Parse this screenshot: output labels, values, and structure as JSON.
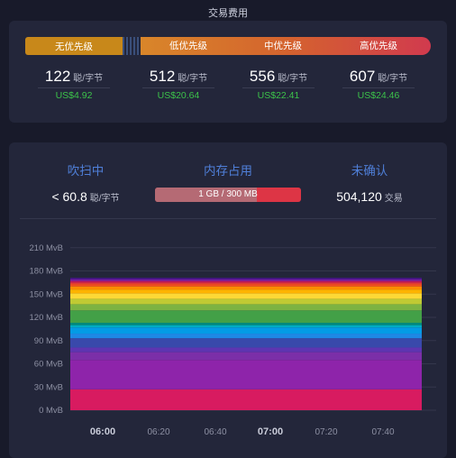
{
  "fees": {
    "title": "交易费用",
    "tiers": [
      {
        "label": "无优先级",
        "value": "122",
        "unit": "聪/字节",
        "usd": "US$4.92"
      },
      {
        "label": "低优先级",
        "value": "512",
        "unit": "聪/字节",
        "usd": "US$20.64"
      },
      {
        "label": "中优先级",
        "value": "556",
        "unit": "聪/字节",
        "usd": "US$22.41"
      },
      {
        "label": "高优先级",
        "value": "607",
        "unit": "聪/字节",
        "usd": "US$24.46"
      }
    ],
    "colors": {
      "none": "#c8881a",
      "low": "#d9862a",
      "high": "#d13a4e",
      "usd": "#3cc24a"
    }
  },
  "mempool": {
    "purge": {
      "label": "吹扫中",
      "value": "< 60.8",
      "unit": "聪/字节"
    },
    "memory": {
      "label": "内存占用",
      "text": "1 GB / 300 MB",
      "fill_fraction": 0.7
    },
    "unconfirmed": {
      "label": "未确认",
      "value": "504,120",
      "unit": "交易"
    }
  },
  "chart_data": {
    "type": "area",
    "stacked": true,
    "y_ticks": [
      "0 MvB",
      "30 MvB",
      "60 MvB",
      "90 MvB",
      "120 MvB",
      "150 MvB",
      "180 MvB",
      "210 MvB"
    ],
    "ylim": [
      0,
      210
    ],
    "x_ticks": [
      {
        "label": "06:00",
        "bold": true
      },
      {
        "label": "06:20",
        "bold": false
      },
      {
        "label": "06:40",
        "bold": false
      },
      {
        "label": "07:00",
        "bold": true
      },
      {
        "label": "07:20",
        "bold": false
      },
      {
        "label": "07:40",
        "bold": false
      }
    ],
    "grid": true,
    "layers": [
      {
        "color": "#d81b60",
        "height": 27
      },
      {
        "color": "#8e24aa",
        "height": 38
      },
      {
        "color": "#7b2fa8",
        "height": 10
      },
      {
        "color": "#5e35b1",
        "height": 6
      },
      {
        "color": "#3949ab",
        "height": 12
      },
      {
        "color": "#1e88e5",
        "height": 6
      },
      {
        "color": "#039be5",
        "height": 8
      },
      {
        "color": "#00acc1",
        "height": 3
      },
      {
        "color": "#00897b",
        "height": 3
      },
      {
        "color": "#43a047",
        "height": 16
      },
      {
        "color": "#7cb342",
        "height": 8
      },
      {
        "color": "#c0ca33",
        "height": 7
      },
      {
        "color": "#fdd835",
        "height": 7
      },
      {
        "color": "#ffb300",
        "height": 5
      },
      {
        "color": "#fb8c00",
        "height": 4
      },
      {
        "color": "#f4511e",
        "height": 3
      },
      {
        "color": "#e53935",
        "height": 2
      },
      {
        "color": "#c2185b",
        "height": 2
      },
      {
        "color": "#7b1fa2",
        "height": 2
      },
      {
        "color": "#4a148c",
        "height": 2
      }
    ]
  }
}
